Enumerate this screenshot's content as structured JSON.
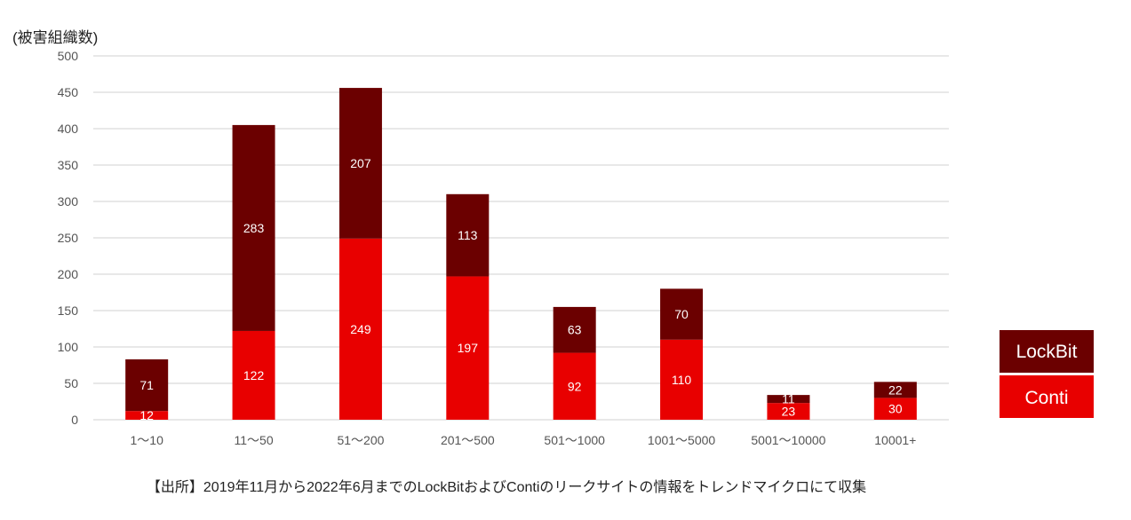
{
  "chart_data": {
    "type": "bar",
    "stacked": true,
    "ylabel": "(被害組織数)",
    "ylim": [
      0,
      500
    ],
    "yticks": [
      0,
      50,
      100,
      150,
      200,
      250,
      300,
      350,
      400,
      450,
      500
    ],
    "grid": true,
    "categories": [
      "1～10",
      "11～50",
      "51～200",
      "201～500",
      "501～1000",
      "1001～5000",
      "5001～10000",
      "10001+"
    ],
    "series": [
      {
        "name": "Conti",
        "color": "#e80000",
        "values": [
          12,
          122,
          249,
          197,
          92,
          110,
          23,
          30
        ]
      },
      {
        "name": "LockBit",
        "color": "#6b0000",
        "values": [
          71,
          283,
          207,
          113,
          63,
          70,
          11,
          22
        ]
      }
    ],
    "legend": {
      "placement": "right",
      "items": [
        "LockBit",
        "Conti"
      ]
    },
    "source_note": "【出所】2019年11月から2022年6月までのLockBitおよびContiのリークサイトの情報をトレンドマイクロにて収集"
  }
}
